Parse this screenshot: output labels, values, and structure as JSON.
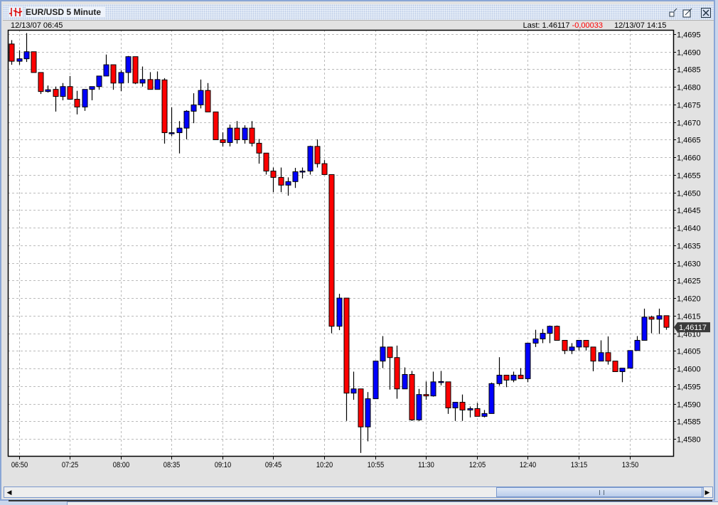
{
  "window": {
    "title": "EUR/USD 5 Minute",
    "icon": "candlestick-app-icon",
    "buttons": [
      "minimize-icon",
      "maximize-icon",
      "close-icon"
    ]
  },
  "header": {
    "start_time": "12/13/07 06:45",
    "last_label": "Last: 1.46117",
    "change": "-0,00033",
    "end_time": "12/13/07 14:15"
  },
  "colors": {
    "up": "#0000ff",
    "down": "#ff0000",
    "change": "#ff0000",
    "price_tag": "#3a3a3a"
  },
  "chart_data": {
    "type": "candlestick",
    "title": "EUR/USD 5 Minute",
    "ylim": [
      1.4575,
      1.4697
    ],
    "grid": true,
    "y_ticks": [
      "1,4695",
      "1,4690",
      "1,4685",
      "1,4680",
      "1,4675",
      "1,4670",
      "1,4665",
      "1,4660",
      "1,4655",
      "1,4650",
      "1,4645",
      "1,4640",
      "1,4635",
      "1,4630",
      "1,4625",
      "1,4620",
      "1,4615",
      "1,4610",
      "1,4605",
      "1,4600",
      "1,4595",
      "1,4590",
      "1,4585",
      "1,4580"
    ],
    "y_tick_values": [
      1.4695,
      1.469,
      1.4685,
      1.468,
      1.4675,
      1.467,
      1.4665,
      1.466,
      1.4655,
      1.465,
      1.4645,
      1.464,
      1.4635,
      1.463,
      1.4625,
      1.462,
      1.4615,
      1.461,
      1.4605,
      1.46,
      1.4595,
      1.459,
      1.4585,
      1.458
    ],
    "x_ticks": [
      "06:50",
      "07:25",
      "08:00",
      "08:35",
      "09:10",
      "09:45",
      "10:20",
      "10:55",
      "11:30",
      "12:05",
      "12:40",
      "13:15",
      "13:50"
    ],
    "last_price_label": "1,46117",
    "last_price": 1.46117,
    "candles_fields": [
      "time",
      "open",
      "high",
      "low",
      "close"
    ],
    "candles": [
      [
        "06:45",
        1.46922,
        1.46933,
        1.46863,
        1.46873
      ],
      [
        "06:50",
        1.46873,
        1.46904,
        1.46863,
        1.4688
      ],
      [
        "06:55",
        1.4688,
        1.46953,
        1.46871,
        1.469
      ],
      [
        "07:00",
        1.469,
        1.469,
        1.46841,
        1.46841
      ],
      [
        "07:05",
        1.46841,
        1.46841,
        1.4678,
        1.46787
      ],
      [
        "07:10",
        1.46787,
        1.46804,
        1.46784,
        1.46792
      ],
      [
        "07:15",
        1.46793,
        1.46801,
        1.4673,
        1.46773
      ],
      [
        "07:20",
        1.46773,
        1.46811,
        1.46762,
        1.46801
      ],
      [
        "07:25",
        1.46801,
        1.46831,
        1.46765,
        1.46765
      ],
      [
        "07:30",
        1.46765,
        1.46789,
        1.46722,
        1.46743
      ],
      [
        "07:35",
        1.46743,
        1.46793,
        1.46732,
        1.46793
      ],
      [
        "07:40",
        1.46793,
        1.46801,
        1.46762,
        1.46801
      ],
      [
        "07:45",
        1.46801,
        1.46831,
        1.46792,
        1.46831
      ],
      [
        "07:50",
        1.46831,
        1.46892,
        1.46831,
        1.46863
      ],
      [
        "07:55",
        1.46863,
        1.46863,
        1.46792,
        1.46811
      ],
      [
        "08:00",
        1.46811,
        1.46847,
        1.46788,
        1.46841
      ],
      [
        "08:05",
        1.46841,
        1.46888,
        1.46811,
        1.46886
      ],
      [
        "08:10",
        1.46886,
        1.46886,
        1.46808,
        1.46811
      ],
      [
        "08:15",
        1.46811,
        1.46858,
        1.46801,
        1.46821
      ],
      [
        "08:20",
        1.46821,
        1.46842,
        1.46793,
        1.46793
      ],
      [
        "08:25",
        1.46793,
        1.46844,
        1.46793,
        1.46821
      ],
      [
        "08:30",
        1.4682,
        1.46825,
        1.46639,
        1.4667
      ],
      [
        "08:35",
        1.4667,
        1.46742,
        1.4666,
        1.4667
      ],
      [
        "08:40",
        1.4667,
        1.46703,
        1.46611,
        1.46683
      ],
      [
        "08:45",
        1.46683,
        1.46734,
        1.46651,
        1.46731
      ],
      [
        "08:50",
        1.46731,
        1.46782,
        1.46697,
        1.46749
      ],
      [
        "08:55",
        1.46749,
        1.46821,
        1.46739,
        1.4679
      ],
      [
        "09:00",
        1.4679,
        1.46811,
        1.46729,
        1.46729
      ],
      [
        "09:05",
        1.46729,
        1.46729,
        1.4665,
        1.4665
      ],
      [
        "09:10",
        1.4665,
        1.46671,
        1.46631,
        1.46642
      ],
      [
        "09:15",
        1.46642,
        1.46693,
        1.46631,
        1.46683
      ],
      [
        "09:20",
        1.46683,
        1.46703,
        1.46639,
        1.4665
      ],
      [
        "09:25",
        1.4665,
        1.46691,
        1.46639,
        1.46683
      ],
      [
        "09:30",
        1.46683,
        1.46703,
        1.46631,
        1.4664
      ],
      [
        "09:35",
        1.4664,
        1.46652,
        1.46582,
        1.46612
      ],
      [
        "09:40",
        1.46612,
        1.46612,
        1.46551,
        1.46561
      ],
      [
        "09:45",
        1.46561,
        1.46571,
        1.46501,
        1.46543
      ],
      [
        "09:50",
        1.46543,
        1.46571,
        1.46501,
        1.46521
      ],
      [
        "09:55",
        1.46521,
        1.46543,
        1.46491,
        1.46531
      ],
      [
        "10:00",
        1.46531,
        1.4657,
        1.46513,
        1.46559
      ],
      [
        "10:05",
        1.4656,
        1.46571,
        1.4654,
        1.46561
      ],
      [
        "10:10",
        1.46561,
        1.46633,
        1.46551,
        1.46631
      ],
      [
        "10:15",
        1.46631,
        1.46651,
        1.46571,
        1.46582
      ],
      [
        "10:20",
        1.46582,
        1.46592,
        1.46551,
        1.46551
      ],
      [
        "10:25",
        1.46551,
        1.46551,
        1.461,
        1.4612
      ],
      [
        "10:30",
        1.4612,
        1.46212,
        1.46109,
        1.462
      ],
      [
        "10:35",
        1.462,
        1.462,
        1.45851,
        1.4593
      ],
      [
        "10:40",
        1.4593,
        1.45991,
        1.45911,
        1.45942
      ],
      [
        "10:45",
        1.45942,
        1.45942,
        1.4576,
        1.45834
      ],
      [
        "10:50",
        1.45834,
        1.45933,
        1.45793,
        1.45914
      ],
      [
        "10:55",
        1.45914,
        1.46021,
        1.45914,
        1.46021
      ],
      [
        "11:00",
        1.46021,
        1.46092,
        1.46001,
        1.46061
      ],
      [
        "11:05",
        1.46061,
        1.46061,
        1.4594,
        1.46031
      ],
      [
        "11:10",
        1.46031,
        1.46065,
        1.45914,
        1.45942
      ],
      [
        "11:15",
        1.45942,
        1.46003,
        1.45942,
        1.45983
      ],
      [
        "11:20",
        1.45983,
        1.45993,
        1.45851,
        1.45854
      ],
      [
        "11:25",
        1.45854,
        1.45942,
        1.45851,
        1.45926
      ],
      [
        "11:30",
        1.45926,
        1.45963,
        1.45911,
        1.45922
      ],
      [
        "11:35",
        1.45922,
        1.45991,
        1.4592,
        1.45962
      ],
      [
        "11:40",
        1.45962,
        1.45993,
        1.45952,
        1.45963
      ],
      [
        "11:45",
        1.45962,
        1.45962,
        1.45871,
        1.45888
      ],
      [
        "11:50",
        1.45888,
        1.45904,
        1.45851,
        1.45904
      ],
      [
        "11:55",
        1.45904,
        1.45926,
        1.45851,
        1.45882
      ],
      [
        "12:00",
        1.45882,
        1.45892,
        1.45861,
        1.45886
      ],
      [
        "12:05",
        1.45886,
        1.45902,
        1.45864,
        1.45864
      ],
      [
        "12:10",
        1.45864,
        1.45882,
        1.45861,
        1.45872
      ],
      [
        "12:15",
        1.45872,
        1.4596,
        1.45872,
        1.45957
      ],
      [
        "12:20",
        1.45957,
        1.46032,
        1.45951,
        1.45981
      ],
      [
        "12:25",
        1.45981,
        1.45981,
        1.45947,
        1.45967
      ],
      [
        "12:30",
        1.45967,
        1.45991,
        1.45961,
        1.45981
      ],
      [
        "12:35",
        1.45981,
        1.46001,
        1.45971,
        1.45971
      ],
      [
        "12:40",
        1.45971,
        1.46072,
        1.45961,
        1.46072
      ],
      [
        "12:45",
        1.46072,
        1.4611,
        1.46061,
        1.46084
      ],
      [
        "12:50",
        1.46084,
        1.46112,
        1.46072,
        1.461
      ],
      [
        "12:55",
        1.461,
        1.46122,
        1.46072,
        1.4612
      ],
      [
        "13:00",
        1.4612,
        1.46122,
        1.4608,
        1.4608
      ],
      [
        "13:05",
        1.4608,
        1.4608,
        1.46041,
        1.46051
      ],
      [
        "13:10",
        1.46051,
        1.46072,
        1.46041,
        1.46061
      ],
      [
        "13:15",
        1.46061,
        1.4608,
        1.46051,
        1.4608
      ],
      [
        "13:20",
        1.4608,
        1.4608,
        1.46051,
        1.46061
      ],
      [
        "13:25",
        1.46061,
        1.46061,
        1.45992,
        1.46021
      ],
      [
        "13:30",
        1.46021,
        1.4608,
        1.46021,
        1.46045
      ],
      [
        "13:35",
        1.46045,
        1.46091,
        1.46011,
        1.46021
      ],
      [
        "13:40",
        1.46021,
        1.46021,
        1.45991,
        1.45991
      ],
      [
        "13:45",
        1.45991,
        1.46001,
        1.45961,
        1.46001
      ],
      [
        "13:50",
        1.46001,
        1.46051,
        1.46001,
        1.46051
      ],
      [
        "13:55",
        1.46051,
        1.46092,
        1.46051,
        1.4608
      ],
      [
        "14:00",
        1.4608,
        1.4617,
        1.4608,
        1.46146
      ],
      [
        "14:05",
        1.46146,
        1.4615,
        1.461,
        1.4614
      ],
      [
        "14:10",
        1.4614,
        1.4617,
        1.46098,
        1.4615
      ],
      [
        "14:15",
        1.4615,
        1.4615,
        1.4611,
        1.46117
      ]
    ]
  }
}
